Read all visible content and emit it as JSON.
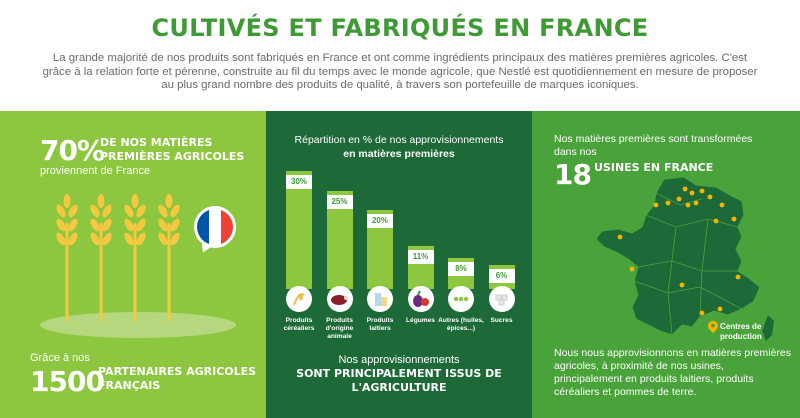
{
  "header": {
    "title": "CULTIVÉS ET FABRIQUÉS EN FRANCE",
    "intro": "La grande majorité de nos produits sont fabriqués en France et ont comme ingrédients principaux des matières premières agricoles. C'est grâce à la relation forte et pérenne, construite au fil du temps avec le monde agricole, que Nestlé est quotidiennement en mesure de proposer au plus grand nombre des produits de qualité, à travers son portefeuille de marques iconiques."
  },
  "left": {
    "percent": "70%",
    "percent_label": "DE NOS MATIÈRES PREMIÈRES AGRICOLES",
    "percent_sub": "proviennent de France",
    "partners_pre": "Grâce à nos",
    "partners_num": "1500",
    "partners_label": "PARTENAIRES AGRICOLES FRANÇAIS",
    "wheat_icon": "wheat-icon",
    "flag_icon": "france-flag-icon",
    "colors": {
      "flag_blue": "#0055a4",
      "flag_white": "#ffffff",
      "flag_red": "#ef4135",
      "wheat": "#f5c842"
    }
  },
  "middle": {
    "chart_title_1": "Répartition en % de nos approvisionnements",
    "chart_title_2": "en matières premières",
    "footer_1": "Nos approvisionnements",
    "footer_2": "SONT PRINCIPALEMENT ISSUS DE L'AGRICULTURE"
  },
  "chart_data": {
    "type": "bar",
    "categories": [
      "Produits céréaliers",
      "Produits d'origine animale",
      "Produits laitiers",
      "Légumes",
      "Autres (huiles, épices...)",
      "Sucres"
    ],
    "values": [
      30,
      25,
      20,
      11,
      8,
      6
    ],
    "value_labels": [
      "30%",
      "25%",
      "20%",
      "11%",
      "8%",
      "6%"
    ],
    "title": "Répartition en % de nos approvisionnements en matières premières",
    "ylim": [
      0,
      30
    ],
    "grid": false,
    "icons": [
      "cereal-icon",
      "meat-icon",
      "dairy-icon",
      "vegetables-icon",
      "oils-spices-icon",
      "sugar-icon"
    ],
    "bar_color": "#8dc63f"
  },
  "right": {
    "text_1": "Nos matières premières sont transformées dans nos",
    "factories_num": "18",
    "factories_label": "USINES EN FRANCE",
    "legend_label": "Centres de production",
    "text_2": "Nous nous approvisionnons en matières premières agricoles, à proximité de nos usines, principalement en produits laitiers, produits céréaliers et pommes de terre.",
    "map_icon": "france-map-icon",
    "pin_icon": "map-pin-icon",
    "colors": {
      "map": "#1d6a38",
      "pin": "#f5b400"
    }
  }
}
